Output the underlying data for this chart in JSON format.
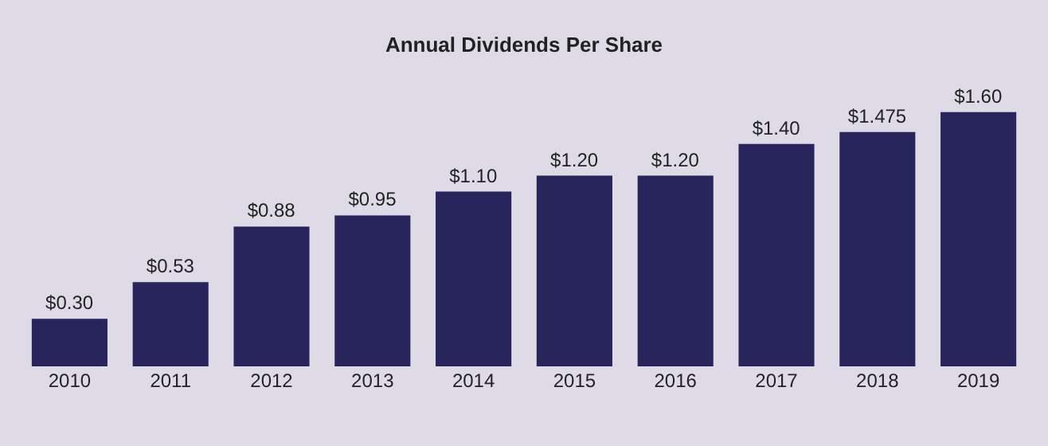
{
  "chart_data": {
    "type": "bar",
    "title": "Annual Dividends Per Share",
    "categories": [
      "2010",
      "2011",
      "2012",
      "2013",
      "2014",
      "2015",
      "2016",
      "2017",
      "2018",
      "2019"
    ],
    "values": [
      0.3,
      0.53,
      0.88,
      0.95,
      1.1,
      1.2,
      1.2,
      1.4,
      1.475,
      1.6
    ],
    "value_labels": [
      "$0.30",
      "$0.53",
      "$0.88",
      "$0.95",
      "$1.10",
      "$1.20",
      "$1.20",
      "$1.40",
      "$1.475",
      "$1.60"
    ],
    "color": "#27255c"
  }
}
